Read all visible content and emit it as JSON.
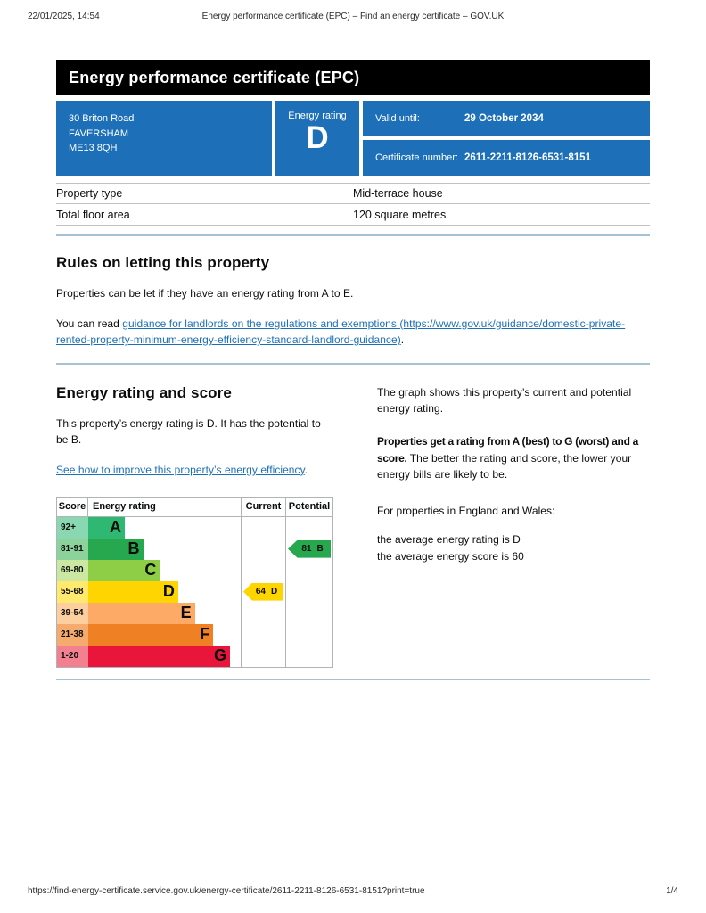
{
  "browser": {
    "datetime": "22/01/2025, 14:54",
    "doc_title": "Energy performance certificate (EPC) – Find an energy certificate – GOV.UK",
    "url": "https://find-energy-certificate.service.gov.uk/energy-certificate/2611-2211-8126-6531-8151?print=true",
    "page_indicator": "1/4"
  },
  "certificate": {
    "title": "Energy performance certificate (EPC)",
    "address_lines": [
      "30 Briton Road",
      "FAVERSHAM",
      "ME13 8QH"
    ],
    "energy_rating_label": "Energy rating",
    "energy_rating": "D",
    "valid_until_label": "Valid until:",
    "valid_until": "29 October 2034",
    "certificate_number_label": "Certificate number:",
    "certificate_number": "2611-2211-8126-6531-8151",
    "accent_blue": "#1d70b8",
    "properties": [
      {
        "label": "Property type",
        "value": "Mid-terrace house"
      },
      {
        "label": "Total floor area",
        "value": "120 square metres"
      }
    ]
  },
  "rules_section": {
    "heading": "Rules on letting this property",
    "paragraph": "Properties can be let if they have an energy rating from A to E.",
    "read_prefix": "You can read ",
    "link_text": "guidance for landlords on the regulations and exemptions (https://www.gov.uk/guidance/domestic-private-rented-property-minimum-energy-efficiency-standard-landlord-guidance)",
    "read_suffix": "."
  },
  "rating_section": {
    "heading": "Energy rating and score",
    "paragraph": "This property’s energy rating is D. It has the potential to be B.",
    "improve_link": "See how to improve this property’s energy efficiency",
    "improve_suffix": ".",
    "right": {
      "p1": "The graph shows this property’s current and potential energy rating.",
      "p2_bold": "Properties get a rating from A (best) to G (worst) and a score.",
      "p2_rest": " The better the rating and score, the lower your energy bills are likely to be.",
      "p3": "For properties in England and Wales:",
      "p4_line1": "the average energy rating is D",
      "p4_line2": "the average energy score is 60"
    }
  },
  "chart_data": {
    "type": "bar",
    "title": "Energy rating and score graph",
    "columns": {
      "score": "Score",
      "rating": "Energy rating",
      "current": "Current",
      "potential": "Potential"
    },
    "bands": [
      {
        "letter": "A",
        "score_range": "92+",
        "color": "#2eb872",
        "tint": "#8ad8b2",
        "bar_pct": 24
      },
      {
        "letter": "B",
        "score_range": "81-91",
        "color": "#27a84f",
        "tint": "#8bd39b",
        "bar_pct": 36
      },
      {
        "letter": "C",
        "score_range": "69-80",
        "color": "#8dce46",
        "tint": "#cbe8a2",
        "bar_pct": 47
      },
      {
        "letter": "D",
        "score_range": "55-68",
        "color": "#ffd500",
        "tint": "#ffe96e",
        "bar_pct": 59
      },
      {
        "letter": "E",
        "score_range": "39-54",
        "color": "#fcaa65",
        "tint": "#fdcf9f",
        "bar_pct": 70
      },
      {
        "letter": "F",
        "score_range": "21-38",
        "color": "#ef8023",
        "tint": "#f5ab6d",
        "bar_pct": 82
      },
      {
        "letter": "G",
        "score_range": "1-20",
        "color": "#e9153b",
        "tint": "#f2808f",
        "bar_pct": 93
      }
    ],
    "current": {
      "score": "64",
      "band": "D",
      "band_index": 3,
      "color": "#ffd500"
    },
    "potential": {
      "score": "81",
      "band": "B",
      "band_index": 1,
      "color": "#27a84f"
    }
  }
}
